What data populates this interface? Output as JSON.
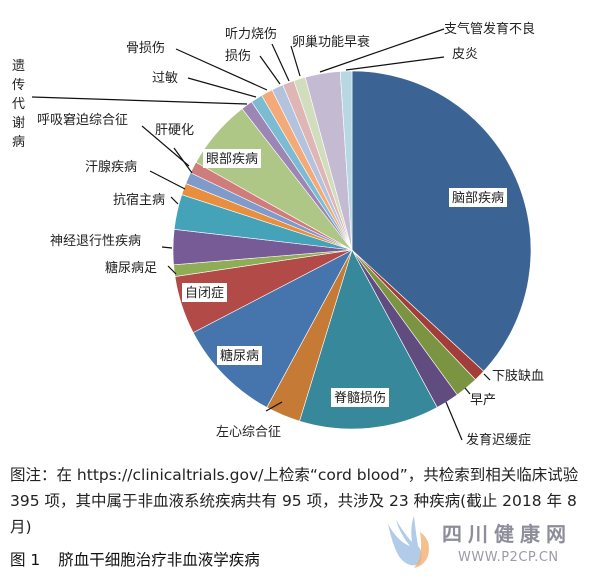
{
  "chart_data": {
    "type": "pie",
    "title": "脐血干细胞治疗非血液学疾病",
    "total_trials": 95,
    "start_angle_deg": 0,
    "direction": "clockwise",
    "slices": [
      {
        "label": "脑部疾病",
        "value": 35,
        "color": "#3b6494",
        "label_style": "inside"
      },
      {
        "label": "下肢缺血",
        "value": 1,
        "color": "#a33d3a",
        "label_style": "callout"
      },
      {
        "label": "早产",
        "value": 2,
        "color": "#7a9441",
        "label_style": "callout"
      },
      {
        "label": "发育迟缓症",
        "value": 2,
        "color": "#614c80",
        "label_style": "callout"
      },
      {
        "label": "脊髓损伤",
        "value": 12,
        "color": "#36889a",
        "label_style": "inside"
      },
      {
        "label": "左心综合征",
        "value": 3,
        "color": "#c57a35",
        "label_style": "callout"
      },
      {
        "label": "糖尿病",
        "value": 9,
        "color": "#4675ad",
        "label_style": "inside"
      },
      {
        "label": "自闭症",
        "value": 5,
        "color": "#b24a48",
        "label_style": "inside"
      },
      {
        "label": "糖尿病足",
        "value": 1,
        "color": "#8fad55",
        "label_style": "callout"
      },
      {
        "label": "神经退行性疾病",
        "value": 3,
        "color": "#765b96",
        "label_style": "callout"
      },
      {
        "label": "抗宿主病",
        "value": 3,
        "color": "#44a2b9",
        "label_style": "callout"
      },
      {
        "label": "汗腺疾病",
        "value": 1,
        "color": "#e88f3f",
        "label_style": "callout"
      },
      {
        "label": "肝硬化",
        "value": 1,
        "color": "#7e9bcb",
        "label_style": "callout"
      },
      {
        "label": "呼吸窘迫综合征",
        "value": 1,
        "color": "#ce7d7b",
        "label_style": "callout"
      },
      {
        "label": "眼部疾病",
        "value": 6,
        "color": "#aec686",
        "label_style": "inside"
      },
      {
        "label": "遗传代谢病",
        "value": 1,
        "color": "#9c86b4",
        "label_style": "callout"
      },
      {
        "label": "过敏",
        "value": 1,
        "color": "#7bbcd2",
        "label_style": "callout"
      },
      {
        "label": "骨损伤",
        "value": 1,
        "color": "#f3aa78",
        "label_style": "callout"
      },
      {
        "label": "损伤",
        "value": 1,
        "color": "#b3c3dd",
        "label_style": "callout"
      },
      {
        "label": "听力烧伤",
        "value": 1,
        "color": "#ddb6b5",
        "label_style": "callout"
      },
      {
        "label": "卵巢功能早衰",
        "value": 1,
        "color": "#d1ddbc",
        "label_style": "callout"
      },
      {
        "label": "支气管发育不良",
        "value": 3,
        "color": "#c4bad2",
        "label_style": "callout"
      },
      {
        "label": "皮炎",
        "value": 1,
        "color": "#b7d7e3",
        "label_style": "callout"
      }
    ],
    "legend": "none (callout labels)"
  },
  "caption": {
    "text": "图注：在 https://clinicaltrials.gov/上检索“cord blood”，共检索到相关临床试验 395 项，其中属于非血液系统疾病共有 95 项，共涉及 23 种疾病(截止 2018 年 8 月)"
  },
  "figure": {
    "number": "图 1",
    "title": "脐血干细胞治疗非血液学疾病"
  },
  "watermark": {
    "title": "四川健康网",
    "url": "WWW.P2CP.CN"
  }
}
